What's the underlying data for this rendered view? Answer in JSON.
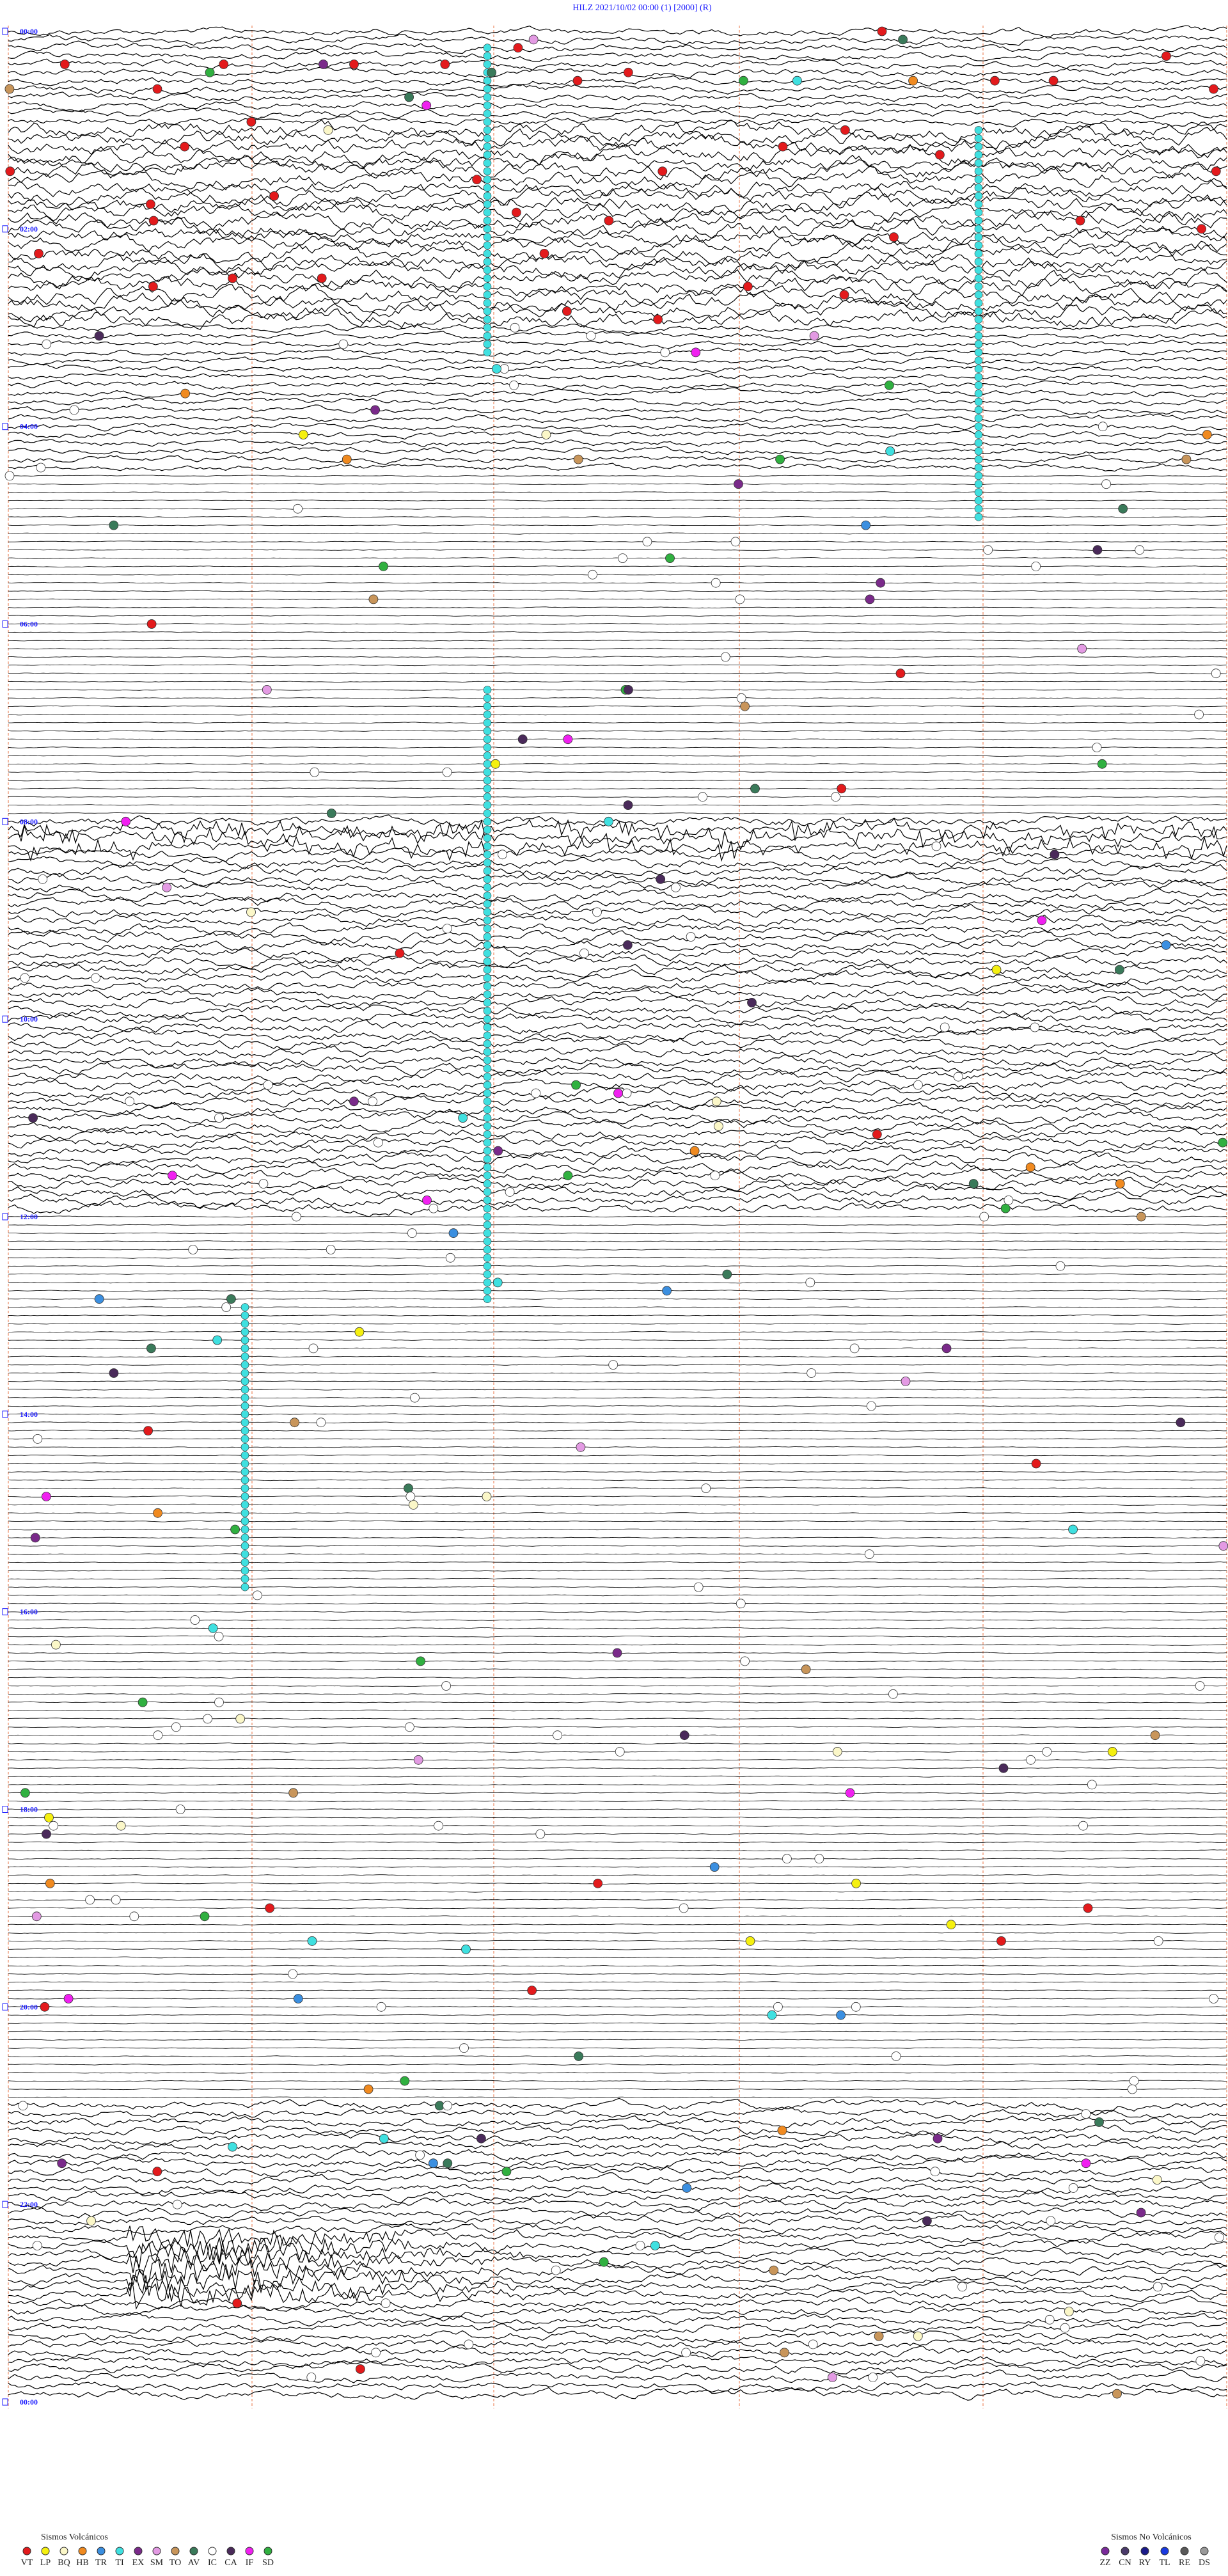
{
  "header": {
    "title": "HILZ    2021/10/02 00:00    (1)    [2000]  (R)"
  },
  "time_labels": [
    "00:00",
    "02:00",
    "04:00",
    "06:00",
    "08:00",
    "10:00",
    "12:00",
    "14:00",
    "16:00",
    "18:00",
    "20:00",
    "22:00",
    "00:00"
  ],
  "legend_volcanic": {
    "title": "Sismos Volcánicos",
    "items": [
      {
        "label": "VT",
        "color": "#e31a1c"
      },
      {
        "label": "LP",
        "color": "#f5f010"
      },
      {
        "label": "BQ",
        "color": "#fbf7c8"
      },
      {
        "label": "HB",
        "color": "#f08a20"
      },
      {
        "label": "TR",
        "color": "#3b8fe0"
      },
      {
        "label": "TI",
        "color": "#3fe0e0"
      },
      {
        "label": "EX",
        "color": "#7a2a8a"
      },
      {
        "label": "SM",
        "color": "#e39ae3"
      },
      {
        "label": "TO",
        "color": "#c8955a"
      },
      {
        "label": "AV",
        "color": "#3a7a5a"
      },
      {
        "label": "IC",
        "color": "#ffffff"
      },
      {
        "label": "CA",
        "color": "#4a2a5a"
      },
      {
        "label": "IF",
        "color": "#f020f0"
      },
      {
        "label": "SD",
        "color": "#30b040"
      }
    ]
  },
  "legend_non_volcanic": {
    "title": "Sismos No Volcánicos",
    "items": [
      {
        "label": "ZZ",
        "color": "#7a2a9a"
      },
      {
        "label": "CN",
        "color": "#4a3a6a"
      },
      {
        "label": "RY",
        "color": "#1a1a8a"
      },
      {
        "label": "TL",
        "color": "#1a3ae0"
      },
      {
        "label": "RE",
        "color": "#5a5a5a"
      },
      {
        "label": "DS",
        "color": "#9a9a9a"
      }
    ]
  }
}
